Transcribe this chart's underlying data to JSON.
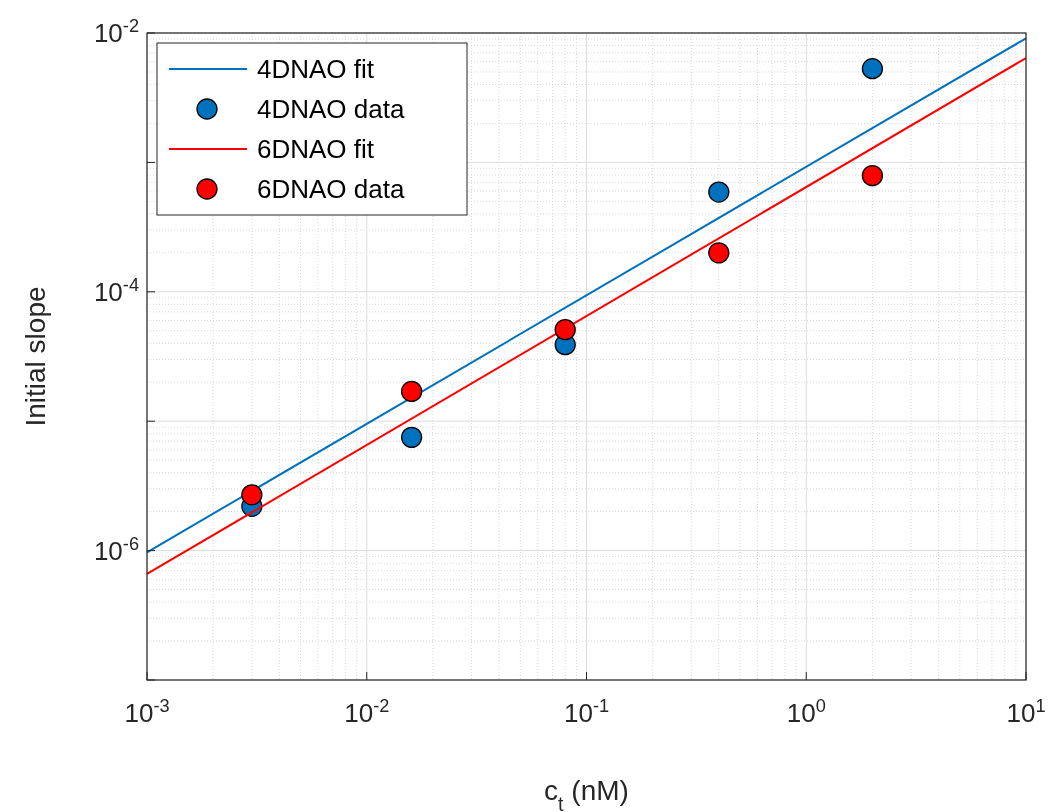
{
  "chart_data": {
    "type": "line",
    "xlabel": "c$_{t}$ (nM)",
    "ylabel": "Initial slope",
    "log": "xy",
    "grid": true,
    "legend": "top left",
    "xlim": [
      0.001,
      10
    ],
    "xticks": [
      {
        "value": 0.001,
        "label": "10$^{-3}$"
      },
      {
        "value": 0.01,
        "label": "10$^{-2}$"
      },
      {
        "value": 0.1,
        "label": "10$^{-1}$"
      },
      {
        "value": 1,
        "label": "10$^{0}$"
      },
      {
        "value": 10,
        "label": "10$^{1}$"
      }
    ],
    "ylim": [
      1e-07,
      0.01
    ],
    "yticks": [
      {
        "value": 1e-07,
        "label": null
      },
      {
        "value": 1e-06,
        "label": "10$^{-6}$"
      },
      {
        "value": 1e-05,
        "label": null
      },
      {
        "value": 0.0001,
        "label": "10$^{-4}$"
      },
      {
        "value": 0.001,
        "label": null
      },
      {
        "value": 0.01,
        "label": "10$^{-2}$"
      }
    ],
    "series": [
      {
        "name": "4DNAO fit",
        "color": "#0072bd",
        "x": [
          0.001,
          10
        ],
        "values": [
          9.7e-07,
          0.0091
        ]
      },
      {
        "name": "4DNAO data",
        "type": "scatter",
        "marker": "circle",
        "color": "#0072bd",
        "x": [
          0.003,
          0.016,
          0.08,
          0.4,
          2
        ],
        "values": [
          2.2e-06,
          7.5e-06,
          3.9e-05,
          0.00059,
          0.0053
        ]
      },
      {
        "name": "6DNAO fit",
        "color": "#ff0000",
        "x": [
          0.001,
          10
        ],
        "values": [
          6.6e-07,
          0.0064
        ]
      },
      {
        "name": "6DNAO data",
        "type": "scatter",
        "marker": "circle",
        "color": "#ff0000",
        "x": [
          0.003,
          0.016,
          0.08,
          0.4,
          2
        ],
        "values": [
          2.7e-06,
          1.7e-05,
          5.1e-05,
          0.0002,
          0.00079
        ]
      }
    ]
  }
}
